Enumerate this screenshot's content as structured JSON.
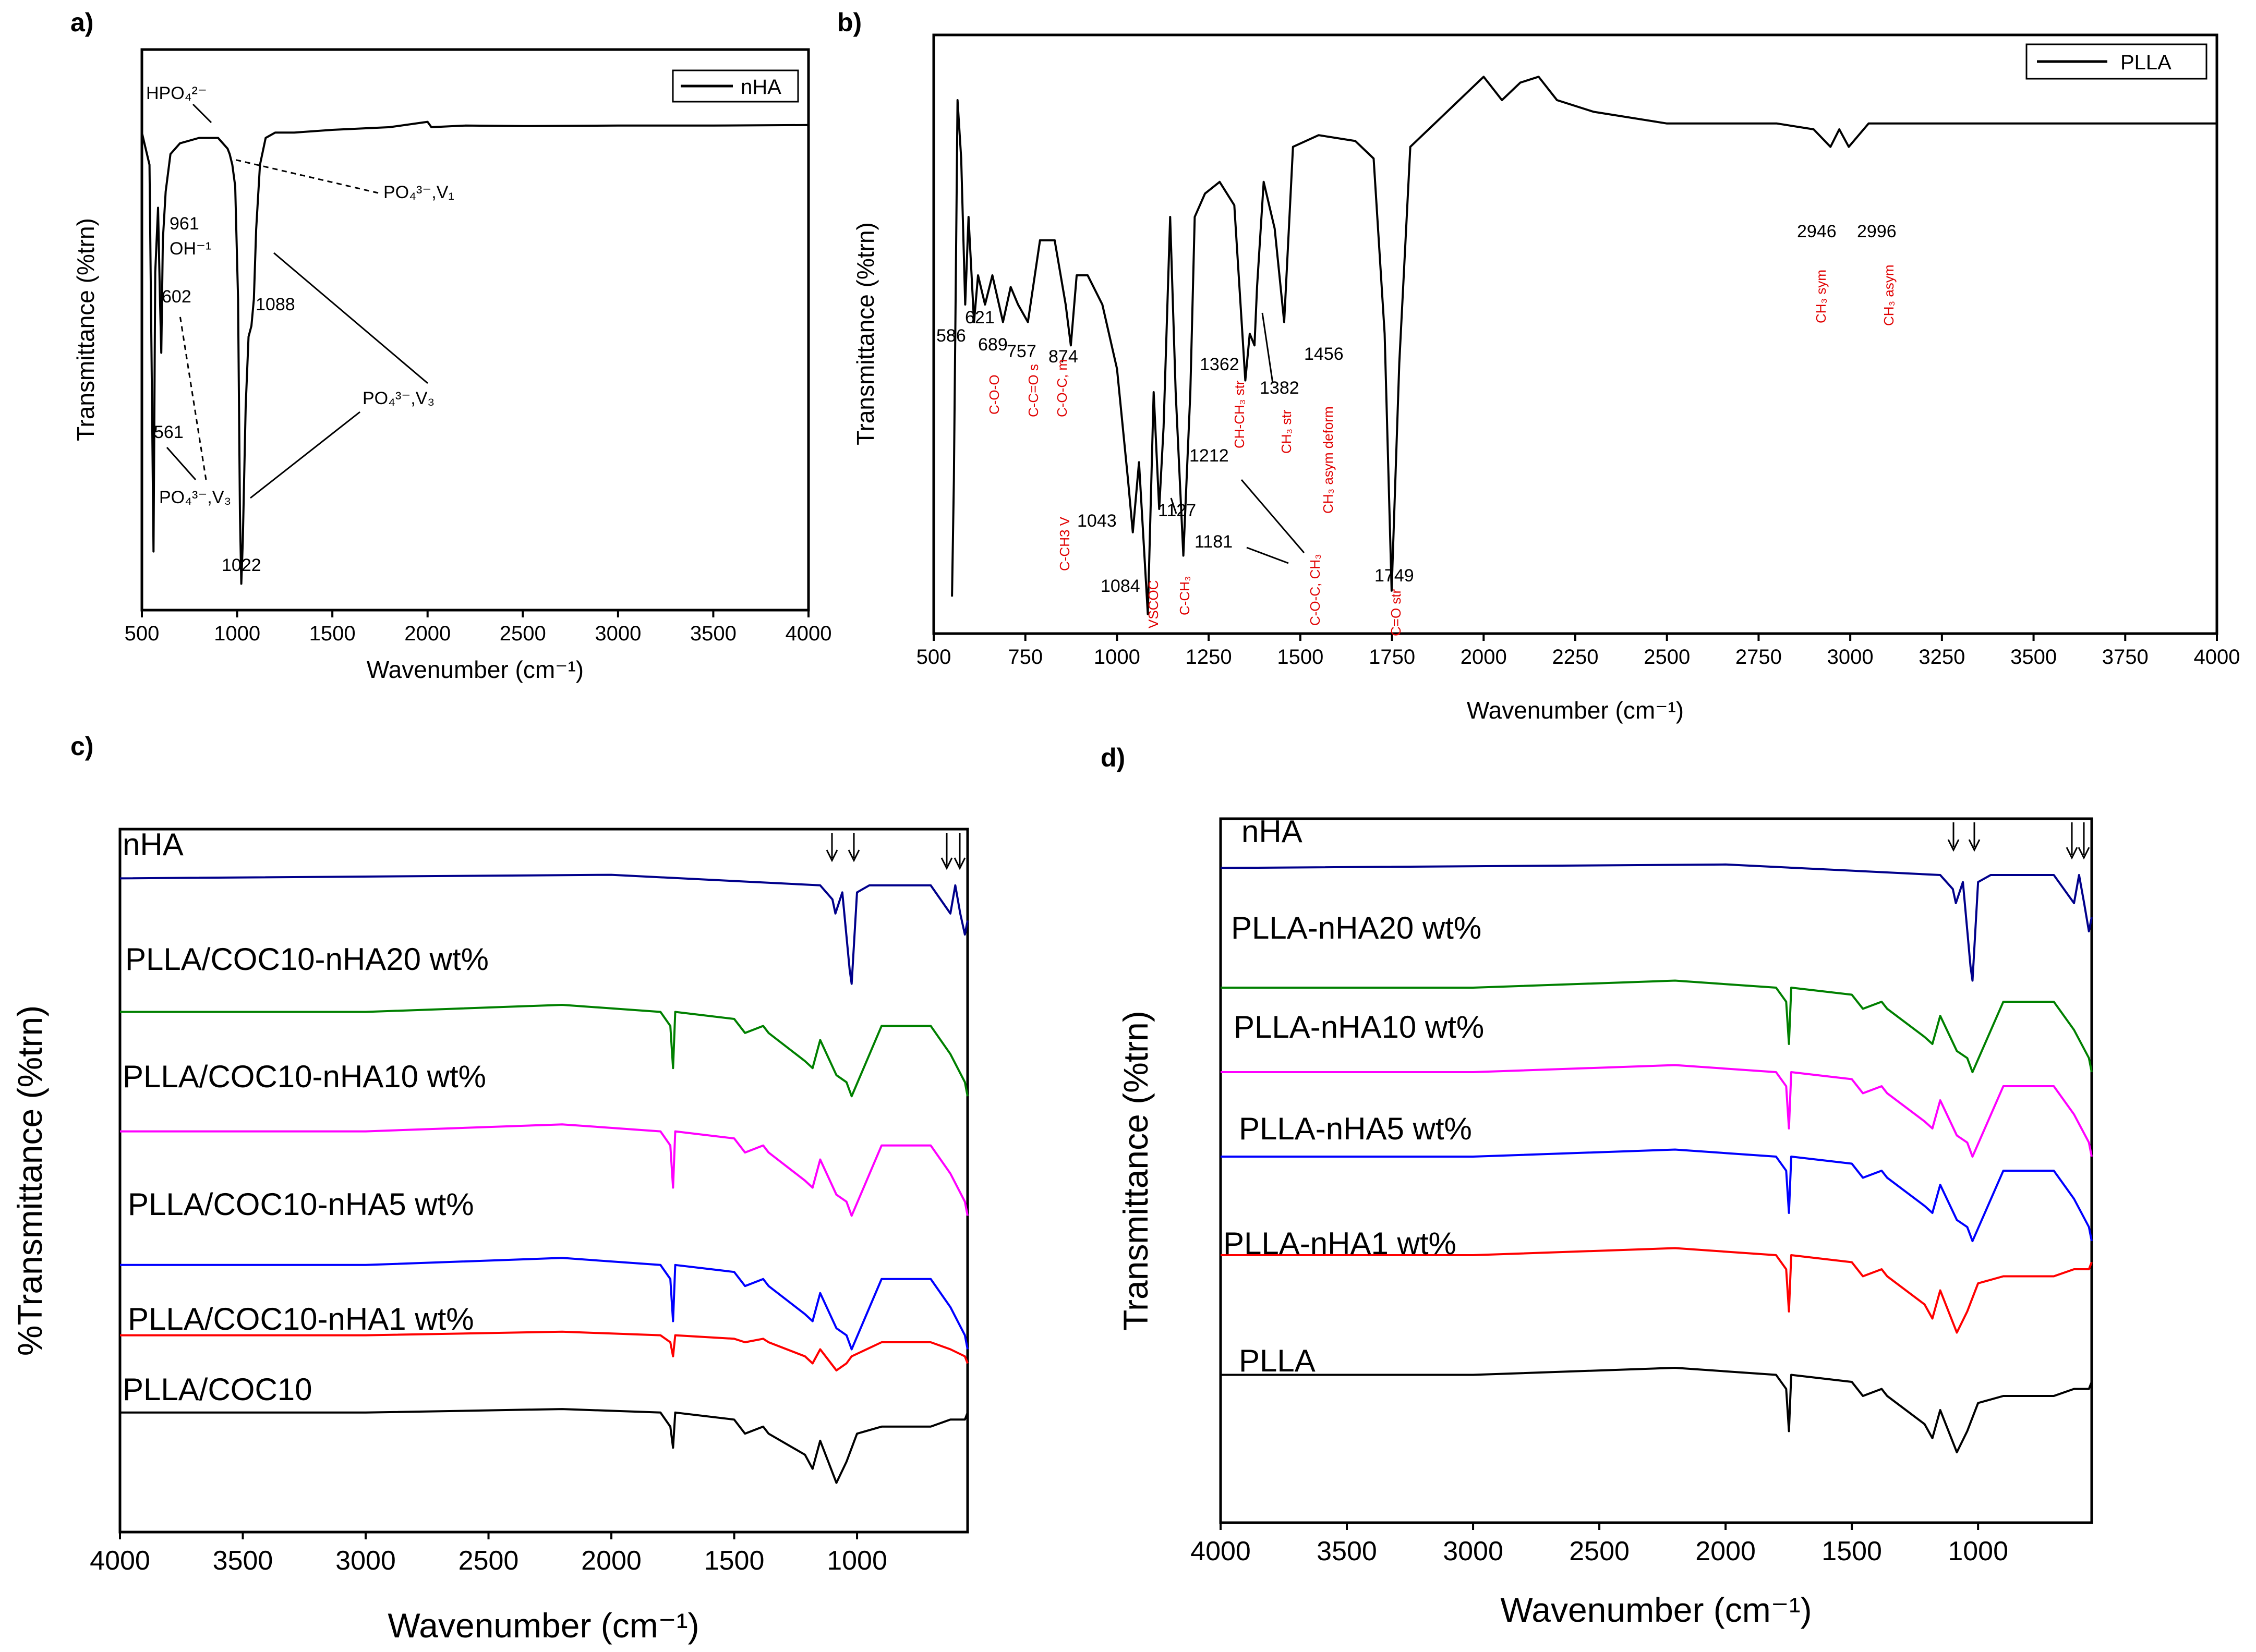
{
  "panels": {
    "a": {
      "label": "a)",
      "xlabel": "Wavenumber (cm⁻¹)",
      "ylabel": "Transmittance (%trn)",
      "legend": "nHA",
      "xticks": [
        "500",
        "1000",
        "1500",
        "2000",
        "2500",
        "3000",
        "3500",
        "4000"
      ],
      "annotations": {
        "hpo4": "HPO₄²⁻",
        "v961": "961",
        "oh": "OH⁻¹",
        "v602": "602",
        "v561": "561",
        "v1088": "1088",
        "v1022": "1022",
        "po4_v1": "PO₄³⁻,V₁",
        "po4_v3_right": "PO₄³⁻,V₃",
        "po4_v3_left": "PO₄³⁻,V₃"
      }
    },
    "b": {
      "label": "b)",
      "xlabel": "Wavenumber (cm⁻¹)",
      "ylabel": "Transmittance (%trn)",
      "legend": "PLLA",
      "xticks": [
        "500",
        "750",
        "1000",
        "1250",
        "1500",
        "1750",
        "2000",
        "2250",
        "2500",
        "2750",
        "3000",
        "3250",
        "3500",
        "3750",
        "4000"
      ],
      "peak_labels": [
        "586",
        "621",
        "689",
        "757",
        "874",
        "1043",
        "1084",
        "1127",
        "1181",
        "1212",
        "1362",
        "1382",
        "1456",
        "1749",
        "2946",
        "2996"
      ],
      "assignments": [
        "C-O-O",
        "C-C=O s",
        "C-O-C, m",
        "C-CH3 V",
        "VSCOC",
        "C-CH₃",
        "CH-CH₃ str",
        "CH₃ str",
        "C-O-C, CH₃",
        "CH₃ asym deform",
        "C=O str",
        "CH₃ sym",
        "CH₃ asym"
      ]
    },
    "c": {
      "label": "c)",
      "xlabel": "Wavenumber (cm⁻¹)",
      "ylabel": "%Transmittance (%trn)",
      "xticks": [
        "4000",
        "3500",
        "3000",
        "2500",
        "2000",
        "1500",
        "1000"
      ],
      "series": [
        "nHA",
        "PLLA/COC10-nHA20 wt%",
        "PLLA/COC10-nHA10 wt%",
        "PLLA/COC10-nHA5 wt%",
        "PLLA/COC10-nHA1 wt%",
        "PLLA/COC10"
      ]
    },
    "d": {
      "label": "d)",
      "xlabel": "Wavenumber (cm⁻¹)",
      "ylabel": "Transmittance (%trn)",
      "xticks": [
        "4000",
        "3500",
        "3000",
        "2500",
        "2000",
        "1500",
        "1000"
      ],
      "series": [
        "nHA",
        "PLLA-nHA20 wt%",
        "PLLA-nHA10 wt%",
        "PLLA-nHA5 wt%",
        "PLLA-nHA1 wt%",
        "PLLA"
      ]
    }
  },
  "colors": {
    "nHA": "#00008b",
    "nHA20": "#008000",
    "nHA10": "#ff00ff",
    "nHA5": "#0000ff",
    "nHA1": "#ff0000",
    "base": "#000000",
    "annotation_red": "#e00000"
  },
  "chart_data": [
    {
      "id": "a",
      "type": "line",
      "title": "",
      "xlabel": "Wavenumber (cm-1)",
      "ylabel": "Transmittance (%trn)",
      "xlim": [
        500,
        4000
      ],
      "ylim": [
        0,
        100
      ],
      "series": [
        {
          "name": "nHA",
          "x": [
            500,
            540,
            552,
            561,
            570,
            585,
            595,
            602,
            610,
            625,
            650,
            700,
            800,
            900,
            950,
            961,
            975,
            990,
            1005,
            1015,
            1022,
            1030,
            1045,
            1060,
            1075,
            1088,
            1100,
            1120,
            1150,
            1200,
            1300,
            1500,
            1800,
            2000,
            2020,
            2200,
            2500,
            3000,
            3500,
            4000
          ],
          "y": [
            86,
            80,
            40,
            8,
            60,
            72,
            55,
            45,
            66,
            75,
            82,
            84,
            85,
            85,
            83,
            82,
            80,
            76,
            55,
            15,
            2,
            10,
            35,
            48,
            50,
            55,
            68,
            80,
            85,
            86,
            86,
            86.5,
            87,
            88,
            87,
            87.3,
            87.2,
            87.3,
            87.3,
            87.4
          ]
        }
      ]
    },
    {
      "id": "b",
      "type": "line",
      "title": "",
      "xlabel": "Wavenumber (cm-1)",
      "ylabel": "Transmittance (%trn)",
      "xlim": [
        500,
        4000
      ],
      "ylim": [
        0,
        100
      ],
      "series": [
        {
          "name": "PLLA",
          "x": [
            550,
            555,
            565,
            575,
            586,
            595,
            610,
            621,
            640,
            660,
            689,
            710,
            730,
            757,
            790,
            830,
            860,
            874,
            890,
            920,
            960,
            1000,
            1030,
            1043,
            1060,
            1084,
            1100,
            1115,
            1127,
            1145,
            1160,
            1181,
            1200,
            1212,
            1240,
            1280,
            1320,
            1350,
            1362,
            1375,
            1382,
            1400,
            1430,
            1456,
            1480,
            1550,
            1650,
            1700,
            1730,
            1749,
            1770,
            1800,
            1900,
            2000,
            2050,
            2100,
            2150,
            2200,
            2300,
            2500,
            2800,
            2900,
            2946,
            2970,
            2996,
            3050,
            3250,
            3500,
            3750,
            4000
          ],
          "y": [
            5,
            25,
            90,
            80,
            55,
            70,
            52,
            60,
            55,
            60,
            52,
            58,
            55,
            52,
            66,
            66,
            55,
            48,
            60,
            60,
            55,
            44,
            25,
            16,
            28,
            2,
            40,
            20,
            34,
            70,
            40,
            12,
            40,
            70,
            74,
            76,
            72,
            42,
            50,
            48,
            58,
            76,
            68,
            52,
            82,
            84,
            83,
            80,
            50,
            6,
            45,
            82,
            88,
            94,
            90,
            93,
            94,
            90,
            88,
            86,
            86,
            85,
            82,
            85,
            82,
            86,
            86,
            86,
            86,
            86
          ]
        }
      ]
    },
    {
      "id": "c",
      "type": "line",
      "title": "",
      "xlabel": "Wavenumber (cm-1)",
      "ylabel": "%Transmittance (%trn)",
      "xlim": [
        4000,
        550
      ],
      "ylim": [
        0,
        100
      ],
      "series": [
        {
          "name": "nHA",
          "x": [
            4000,
            2000,
            1150,
            1100,
            1088,
            1060,
            1030,
            1022,
            1000,
            950,
            700,
            620,
            600,
            580,
            561,
            550
          ],
          "y": [
            93,
            93.5,
            92,
            90,
            88,
            91,
            80,
            78,
            91,
            92,
            92,
            88,
            92,
            88,
            85,
            87
          ]
        },
        {
          "name": "PLLA/COC10-nHA20 wt%",
          "x": [
            4000,
            3000,
            2200,
            1800,
            1760,
            1749,
            1740,
            1500,
            1456,
            1382,
            1360,
            1212,
            1181,
            1150,
            1084,
            1043,
            1022,
            900,
            700,
            620,
            561,
            550
          ],
          "y": [
            74,
            74,
            75,
            74,
            72,
            66,
            74,
            73,
            71,
            72,
            71,
            67,
            66,
            70,
            65,
            64,
            62,
            72,
            72,
            68,
            64,
            62
          ]
        },
        {
          "name": "PLLA/COC10-nHA10 wt%",
          "x": [
            4000,
            3000,
            2200,
            1800,
            1760,
            1749,
            1740,
            1500,
            1456,
            1382,
            1360,
            1212,
            1181,
            1150,
            1084,
            1043,
            1022,
            900,
            700,
            620,
            561,
            550
          ],
          "y": [
            57,
            57,
            58,
            57,
            55,
            49,
            57,
            56,
            54,
            55,
            54,
            50,
            49,
            53,
            48,
            47,
            45,
            55,
            55,
            51,
            47,
            45
          ]
        },
        {
          "name": "PLLA/COC10-nHA5 wt%",
          "x": [
            4000,
            3000,
            2200,
            1800,
            1760,
            1749,
            1740,
            1500,
            1456,
            1382,
            1360,
            1212,
            1181,
            1150,
            1084,
            1043,
            1022,
            900,
            700,
            620,
            561,
            550
          ],
          "y": [
            38,
            38,
            39,
            38,
            36,
            30,
            38,
            37,
            35,
            36,
            35,
            31,
            30,
            34,
            29,
            28,
            26,
            36,
            36,
            32,
            28,
            26
          ]
        },
        {
          "name": "PLLA/COC10-nHA1 wt%",
          "x": [
            4000,
            3000,
            2200,
            1800,
            1760,
            1749,
            1740,
            1500,
            1456,
            1382,
            1360,
            1212,
            1181,
            1150,
            1084,
            1043,
            1022,
            900,
            700,
            620,
            561,
            550
          ],
          "y": [
            28,
            28,
            28.5,
            28,
            27,
            25,
            28,
            27.5,
            27,
            27.5,
            27,
            25,
            24,
            26,
            23,
            24,
            25,
            27,
            27,
            26,
            25,
            24
          ]
        },
        {
          "name": "PLLA/COC10",
          "x": [
            4000,
            3000,
            2200,
            1800,
            1760,
            1749,
            1740,
            1500,
            1456,
            1382,
            1360,
            1212,
            1181,
            1150,
            1084,
            1043,
            1000,
            900,
            700,
            620,
            561,
            550
          ],
          "y": [
            17,
            17,
            17.5,
            17,
            15,
            12,
            17,
            16,
            14,
            15,
            14,
            11,
            9,
            13,
            7,
            10,
            14,
            15,
            15,
            16,
            16,
            17
          ]
        }
      ]
    },
    {
      "id": "d",
      "type": "line",
      "title": "",
      "xlabel": "Wavenumber (cm-1)",
      "ylabel": "Transmittance (%trn)",
      "xlim": [
        4000,
        550
      ],
      "ylim": [
        0,
        100
      ],
      "series": [
        {
          "name": "nHA",
          "x": [
            4000,
            2000,
            1150,
            1100,
            1088,
            1060,
            1030,
            1022,
            1000,
            950,
            700,
            620,
            600,
            580,
            561,
            550
          ],
          "y": [
            93,
            93.5,
            92,
            90,
            88,
            91,
            79,
            77,
            91,
            92,
            92,
            88,
            92,
            88,
            84,
            86
          ]
        },
        {
          "name": "PLLA-nHA20 wt%",
          "x": [
            4000,
            3000,
            2200,
            1800,
            1760,
            1749,
            1740,
            1500,
            1456,
            1382,
            1360,
            1212,
            1181,
            1150,
            1084,
            1043,
            1022,
            900,
            700,
            620,
            561,
            550
          ],
          "y": [
            76,
            76,
            77,
            76,
            74,
            68,
            76,
            75,
            73,
            74,
            73,
            69,
            68,
            72,
            67,
            66,
            64,
            74,
            74,
            70,
            66,
            64
          ]
        },
        {
          "name": "PLLA-nHA10 wt%",
          "x": [
            4000,
            3000,
            2200,
            1800,
            1760,
            1749,
            1740,
            1500,
            1456,
            1382,
            1360,
            1212,
            1181,
            1150,
            1084,
            1043,
            1022,
            900,
            700,
            620,
            561,
            550
          ],
          "y": [
            64,
            64,
            65,
            64,
            62,
            56,
            64,
            63,
            61,
            62,
            61,
            57,
            56,
            60,
            55,
            54,
            52,
            62,
            62,
            58,
            54,
            52
          ]
        },
        {
          "name": "PLLA-nHA5 wt%",
          "x": [
            4000,
            3000,
            2200,
            1800,
            1760,
            1749,
            1740,
            1500,
            1456,
            1382,
            1360,
            1212,
            1181,
            1150,
            1084,
            1043,
            1022,
            900,
            700,
            620,
            561,
            550
          ],
          "y": [
            52,
            52,
            53,
            52,
            50,
            44,
            52,
            51,
            49,
            50,
            49,
            45,
            44,
            48,
            43,
            42,
            40,
            50,
            50,
            46,
            42,
            40
          ]
        },
        {
          "name": "PLLA-nHA1 wt%",
          "x": [
            4000,
            3000,
            2200,
            1800,
            1760,
            1749,
            1740,
            1500,
            1456,
            1382,
            1360,
            1212,
            1181,
            1150,
            1084,
            1043,
            1000,
            900,
            700,
            620,
            561,
            550
          ],
          "y": [
            38,
            38,
            39,
            38,
            36,
            30,
            38,
            37,
            35,
            36,
            35,
            31,
            29,
            33,
            27,
            30,
            34,
            35,
            35,
            36,
            36,
            37
          ]
        },
        {
          "name": "PLLA",
          "x": [
            4000,
            3000,
            2200,
            1800,
            1760,
            1749,
            1740,
            1500,
            1456,
            1382,
            1360,
            1212,
            1181,
            1150,
            1084,
            1043,
            1000,
            900,
            700,
            620,
            561,
            550
          ],
          "y": [
            21,
            21,
            22,
            21,
            19,
            13,
            21,
            20,
            18,
            19,
            18,
            14,
            12,
            16,
            10,
            13,
            17,
            18,
            18,
            19,
            19,
            20
          ]
        }
      ]
    }
  ]
}
